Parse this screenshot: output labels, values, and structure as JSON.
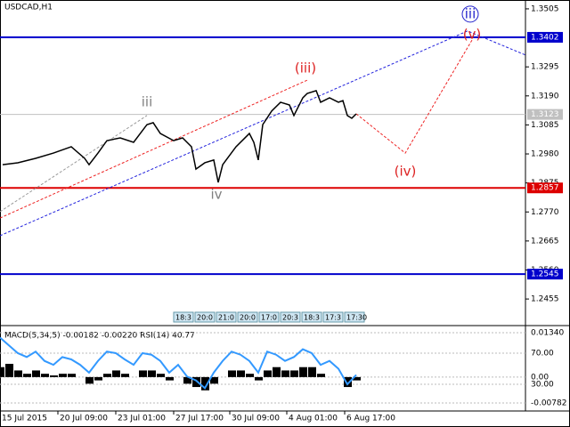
{
  "chart_data": [
    {
      "type": "line",
      "title": "USDCAD,H1",
      "x": [
        3,
        20,
        40,
        60,
        80,
        95,
        100,
        110,
        120,
        135,
        150,
        165,
        172,
        180,
        195,
        205,
        215,
        220,
        230,
        240,
        245,
        250,
        265,
        280,
        285,
        290,
        295,
        305,
        315,
        325,
        330,
        340,
        345,
        355,
        360,
        370,
        380,
        385,
        390,
        395,
        400
      ],
      "values": [
        1.2941,
        1.2948,
        1.2964,
        1.2983,
        1.3006,
        1.2964,
        1.2941,
        1.2983,
        1.3028,
        1.3038,
        1.3022,
        1.3086,
        1.3093,
        1.3054,
        1.3028,
        1.3038,
        1.3006,
        1.2925,
        1.2948,
        1.2958,
        1.2877,
        1.2941,
        1.3006,
        1.3054,
        1.3022,
        1.2958,
        1.3086,
        1.3135,
        1.3167,
        1.3157,
        1.3119,
        1.3183,
        1.3199,
        1.3209,
        1.3167,
        1.3183,
        1.3167,
        1.3173,
        1.3119,
        1.3109,
        1.3125
      ],
      "color": "#000000",
      "xlim": [
        0,
        590
      ],
      "ylim": [
        1.2362,
        1.3537
      ],
      "xticks": [
        {
          "value": 0,
          "label": "15 Jul 2015"
        },
        {
          "value": 65,
          "label": "20 Jul 09:00"
        },
        {
          "value": 130,
          "label": "23 Jul 01:00"
        },
        {
          "value": 195,
          "label": "27 Jul 17:00"
        },
        {
          "value": 258,
          "label": "30 Jul 09:00"
        },
        {
          "value": 322,
          "label": "4 Aug 01:00"
        },
        {
          "value": 387,
          "label": "6 Aug 17:00"
        }
      ],
      "yticks": [
        1.3505,
        1.3295,
        {
          "value": 1.319,
          "label": "1.3190"
        },
        1.3085,
        {
          "value": 1.298,
          "label": "1.2980"
        },
        1.2875,
        {
          "value": 1.277,
          "label": "1.2770"
        },
        1.2665,
        {
          "value": 1.256,
          "label": "1.2560"
        },
        1.2455
      ],
      "levels": [
        {
          "value": 1.3402,
          "color": "#0000cc"
        },
        {
          "value": 1.3123,
          "color": "#c0c0c0"
        },
        {
          "value": 1.2857,
          "color": "#dd0000"
        },
        {
          "value": 1.2545,
          "color": "#0000cc"
        }
      ],
      "lines": [
        {
          "color": "#ee2222",
          "x": [
            400,
            455,
            530
          ],
          "values": [
            1.3125,
            1.2983,
            1.3392
          ]
        },
        {
          "color": "#2222dd",
          "x": [
            0,
            525,
            590
          ],
          "values": [
            1.2684,
            1.3425,
            1.3338
          ]
        },
        {
          "color": "#ee2222",
          "x": [
            0,
            345
          ],
          "values": [
            1.2748,
            1.3247
          ]
        },
        {
          "color": "#999999",
          "x": [
            0,
            165
          ],
          "values": [
            1.2771,
            1.3119
          ]
        }
      ],
      "annotations": [
        {
          "text": "iii",
          "color": "#808080",
          "x": 165,
          "y": 1.3166
        },
        {
          "text": "iv",
          "color": "#808080",
          "x": 243,
          "y": 1.2832
        },
        {
          "text": "(iii)",
          "color": "#dd2222",
          "x": 343,
          "y": 1.3289
        },
        {
          "text": "(iv)",
          "color": "#dd2222",
          "x": 455,
          "y": 1.2915
        },
        {
          "text": "(v)",
          "color": "#dd2222",
          "x": 530,
          "y": 1.3412
        },
        {
          "text": "iii",
          "color": "#2222cc",
          "x": 528,
          "y": 1.3486,
          "circled": true
        }
      ],
      "time_labels": [
        "18:3",
        "20:0",
        "21:0",
        "20:0",
        "17:0",
        "20:3",
        "18:3",
        "17:3",
        "17:30"
      ]
    },
    {
      "type": "bar",
      "title": "MACD(5,34,5) -0.00182 -0.00220 RSI(14) 40.77",
      "x": [
        0,
        10,
        20,
        30,
        40,
        50,
        60,
        70,
        80,
        90,
        100,
        110,
        120,
        130,
        140,
        150,
        160,
        170,
        180,
        190,
        200,
        210,
        220,
        230,
        240,
        250,
        260,
        270,
        280,
        290,
        300,
        310,
        320,
        330,
        340,
        350,
        360,
        370,
        380,
        390,
        400
      ],
      "series": [
        {
          "color": "#000000",
          "values": [
            0.003,
            0.004,
            0.002,
            0.001,
            0.002,
            0.001,
            0.0005,
            0.001,
            0.001,
            0.0,
            -0.002,
            -0.001,
            0.001,
            0.002,
            0.001,
            0.0,
            0.002,
            0.002,
            0.001,
            -0.001,
            0.0,
            -0.002,
            -0.003,
            -0.004,
            -0.002,
            0.0,
            0.002,
            0.002,
            0.001,
            -0.001,
            0.002,
            0.003,
            0.002,
            0.002,
            0.003,
            0.003,
            0.001,
            0.0,
            0.0,
            -0.003,
            -0.001
          ]
        },
        {
          "color": "#3399ff",
          "axis": "y2",
          "values": [
            90,
            80,
            70,
            65,
            72,
            60,
            55,
            65,
            62,
            55,
            45,
            60,
            72,
            70,
            62,
            55,
            70,
            68,
            60,
            45,
            55,
            40,
            35,
            25,
            45,
            60,
            72,
            68,
            60,
            45,
            72,
            68,
            60,
            65,
            75,
            70,
            55,
            60,
            50,
            30,
            42
          ]
        }
      ],
      "xlim": [
        0,
        590
      ],
      "ylim": [
        -0.0097,
        0.01501
      ],
      "y2lim": [
        -2,
        103.1
      ],
      "yticks": [
        {
          "value": 0.0134,
          "label": "0.01340"
        },
        {
          "value": 0,
          "label": "0.00"
        },
        {
          "value": -0.00782,
          "label": "-0.00782"
        }
      ],
      "y2ticks": [
        {
          "value": 70,
          "label": "70.00"
        },
        {
          "value": 30,
          "label": "30.00"
        }
      ]
    }
  ]
}
